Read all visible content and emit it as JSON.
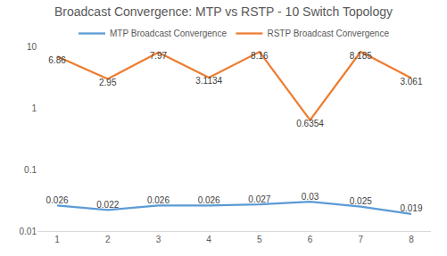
{
  "chart_data": {
    "type": "line",
    "title": "Broadcast Convergence: MTP vs RSTP - 10 Switch Topology",
    "categories": [
      "1",
      "2",
      "3",
      "4",
      "5",
      "6",
      "7",
      "8"
    ],
    "series": [
      {
        "name": "MTP Broadcast Convergence",
        "color": "#5b9bd5",
        "values": [
          0.026,
          0.022,
          0.026,
          0.026,
          0.027,
          0.03,
          0.025,
          0.019
        ]
      },
      {
        "name": "RSTP Broadcast Convergence",
        "color": "#ed7d31",
        "values": [
          6.86,
          2.95,
          7.97,
          3.1134,
          8.16,
          0.6354,
          8.185,
          3.061
        ]
      }
    ],
    "log": "y",
    "ylim": [
      0.01,
      10
    ],
    "yticks": [
      0.01,
      0.1,
      1,
      10
    ],
    "grid": false,
    "legend": "top",
    "data_labels": true
  }
}
